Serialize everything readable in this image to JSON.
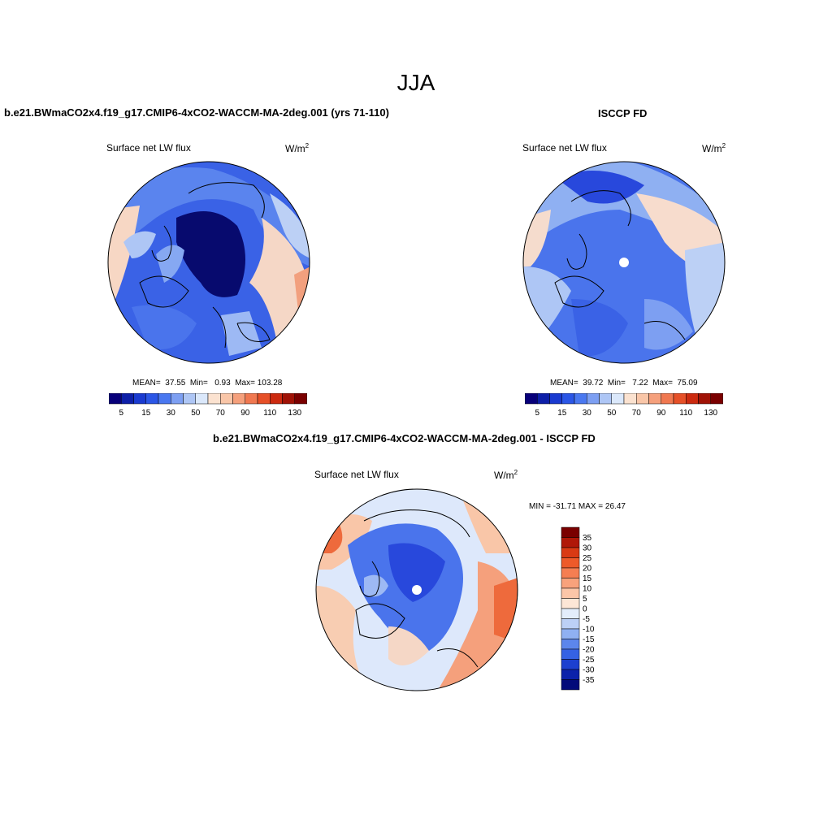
{
  "figure": {
    "title": "JJA",
    "variable": "Surface net LW flux",
    "units_base": "W/m",
    "units_exp": "2"
  },
  "panel_model": {
    "heading": "b.e21.BWmaCO2x4.f19_g17.CMIP6-4xCO2-WACCM-MA-2deg.001 (yrs 71-110)",
    "stats_mean_label": "MEAN=",
    "stats_mean": "37.55",
    "stats_min_label": "Min=",
    "stats_min": "0.93",
    "stats_max_label": "Max=",
    "stats_max": "103.28"
  },
  "panel_obs": {
    "heading": "ISCCP FD",
    "stats_mean_label": "MEAN=",
    "stats_mean": "39.72",
    "stats_min_label": "Min=",
    "stats_min": "7.22",
    "stats_max_label": "Max=",
    "stats_max": "75.09"
  },
  "panel_diff": {
    "heading": "b.e21.BWmaCO2x4.f19_g17.CMIP6-4xCO2-WACCM-MA-2deg.001 - ISCCP FD",
    "stats_text": "MIN = -31.71 MAX =  26.47"
  },
  "colorbar_abs": {
    "tick_labels": [
      "5",
      "15",
      "30",
      "50",
      "70",
      "90",
      "110",
      "130"
    ],
    "colors": [
      "#08007a",
      "#0d1fa8",
      "#1a3ad0",
      "#2b56e6",
      "#4a78f0",
      "#7d9ff2",
      "#aec6f5",
      "#dbe8fb",
      "#fbe2d0",
      "#f9c6a8",
      "#f5a07c",
      "#f07850",
      "#e65028",
      "#cc2a10",
      "#a01206",
      "#7a0000"
    ]
  },
  "colorbar_diff": {
    "tick_labels": [
      "35",
      "30",
      "25",
      "20",
      "15",
      "10",
      "5",
      "0",
      "-5",
      "-10",
      "-15",
      "-20",
      "-25",
      "-30",
      "-35"
    ],
    "colors": [
      "#7a0000",
      "#b01808",
      "#d93a14",
      "#ee5a2a",
      "#f57e52",
      "#f8a27c",
      "#fbc6a8",
      "#fde6d6",
      "#e3edfb",
      "#bcd0f6",
      "#8fb0f2",
      "#5c86ec",
      "#3562e4",
      "#1c40cf",
      "#0c22aa",
      "#030a7a"
    ]
  }
}
